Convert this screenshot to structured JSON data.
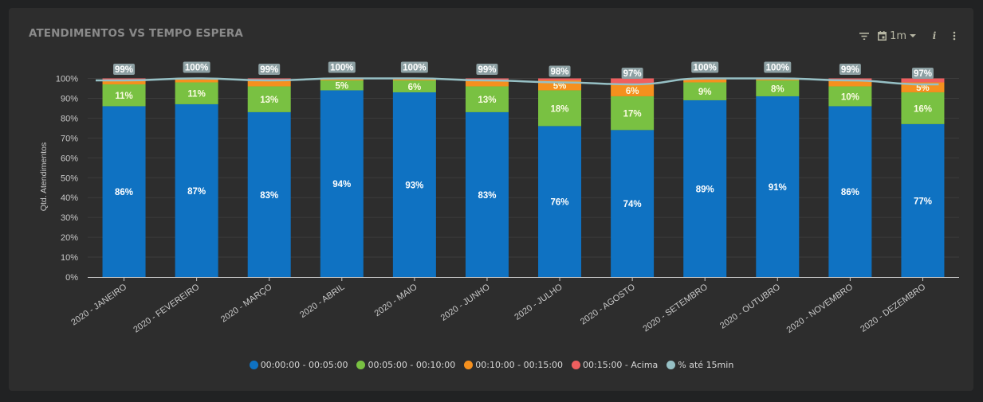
{
  "panel": {
    "title": "ATENDIMENTOS VS TEMPO ESPERA",
    "toolbar": {
      "filter_icon": "filter-icon",
      "range_icon": "calendar-icon",
      "range_label": "1m",
      "range_caret_icon": "caret-down-icon",
      "info_label": "i",
      "more_icon": "vertical-dots-icon"
    }
  },
  "chart_data": {
    "type": "bar",
    "stacked": true,
    "title": "ATENDIMENTOS VS TEMPO ESPERA",
    "xlabel": "",
    "ylabel": "Qtd. Atendimentos",
    "ylim": [
      0,
      100
    ],
    "yticks": [
      "0%",
      "10%",
      "20%",
      "30%",
      "40%",
      "50%",
      "60%",
      "70%",
      "80%",
      "90%",
      "100%"
    ],
    "grid": true,
    "legend_position": "bottom",
    "categories": [
      "2020 - JANEIRO",
      "2020 - FEVEREIRO",
      "2020 - MARÇO",
      "2020 - ABRIL",
      "2020 - MAIO",
      "2020 - JUNHO",
      "2020 - JULHO",
      "2020 - AGOSTO",
      "2020 - SETEMBRO",
      "2020 - OUTUBRO",
      "2020 - NOVEMBRO",
      "2020 - DEZEMBRO"
    ],
    "series": [
      {
        "name": "00:00:00 - 00:05:00",
        "color": "#0f72c2",
        "type": "bar",
        "values": [
          86,
          87,
          83,
          94,
          93,
          83,
          76,
          74,
          89,
          91,
          86,
          77
        ],
        "labels": [
          "86%",
          "87%",
          "83%",
          "94%",
          "93%",
          "83%",
          "76%",
          "74%",
          "89%",
          "91%",
          "86%",
          "77%"
        ]
      },
      {
        "name": "00:05:00 - 00:10:00",
        "color": "#79c142",
        "type": "bar",
        "values": [
          11,
          11,
          13,
          5,
          6,
          13,
          18,
          17,
          9,
          8,
          10,
          16
        ],
        "labels": [
          "11%",
          "11%",
          "13%",
          "5%",
          "6%",
          "13%",
          "18%",
          "17%",
          "9%",
          "8%",
          "10%",
          "16%"
        ]
      },
      {
        "name": "00:10:00 - 00:15:00",
        "color": "#f5901e",
        "type": "bar",
        "values": [
          2,
          1.5,
          3,
          0.5,
          0.5,
          3,
          5,
          6,
          1.5,
          0.5,
          3,
          5
        ],
        "labels": [
          "",
          "",
          "",
          "",
          "",
          "",
          "5%",
          "6%",
          "",
          "",
          "",
          "5%"
        ]
      },
      {
        "name": "00:15:00 - Acima",
        "color": "#ef5f5f",
        "type": "bar",
        "values": [
          1,
          0.5,
          1,
          0.5,
          0.5,
          1,
          1,
          3,
          0.5,
          0.5,
          1,
          2
        ],
        "labels": [
          "",
          "",
          "",
          "",
          "",
          "",
          "",
          "",
          "",
          "",
          "",
          ""
        ]
      },
      {
        "name": "% até 15min",
        "color": "#96c0c5",
        "type": "line",
        "values": [
          99,
          100,
          99,
          100,
          100,
          99,
          98,
          97,
          100,
          100,
          99,
          97
        ],
        "labels": [
          "99%",
          "100%",
          "99%",
          "100%",
          "100%",
          "99%",
          "98%",
          "97%",
          "100%",
          "100%",
          "99%",
          "97%"
        ]
      }
    ]
  },
  "legend": [
    {
      "label": "00:00:00 - 00:05:00",
      "color": "#0f72c2"
    },
    {
      "label": "00:05:00 - 00:10:00",
      "color": "#79c142"
    },
    {
      "label": "00:10:00 - 00:15:00",
      "color": "#f5901e"
    },
    {
      "label": "00:15:00 - Acima",
      "color": "#ef5f5f"
    },
    {
      "label": "% até 15min",
      "color": "#96c0c5"
    }
  ]
}
